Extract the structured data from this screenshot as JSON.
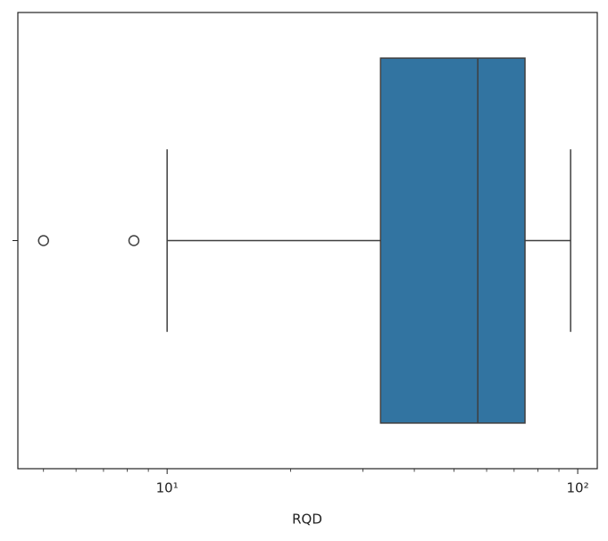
{
  "chart_data": {
    "type": "box",
    "xlabel": "RQD",
    "xscale": "log",
    "categories": [
      null
    ],
    "boxes": [
      {
        "whislo": 10,
        "q1": 33.1,
        "median": 57.1,
        "q3": 74.4,
        "whishi": 96.1,
        "fliers": [
          5.0,
          8.3
        ]
      }
    ],
    "color": "#3274a1",
    "xlim": [
      4.33,
      111.6
    ],
    "xticks": [
      {
        "value": 10,
        "label": "10¹"
      },
      {
        "value": 100,
        "label": "10²"
      }
    ],
    "xminorticks": [
      5,
      6,
      7,
      8,
      9,
      20,
      30,
      40,
      50,
      60,
      70,
      80,
      90
    ]
  }
}
